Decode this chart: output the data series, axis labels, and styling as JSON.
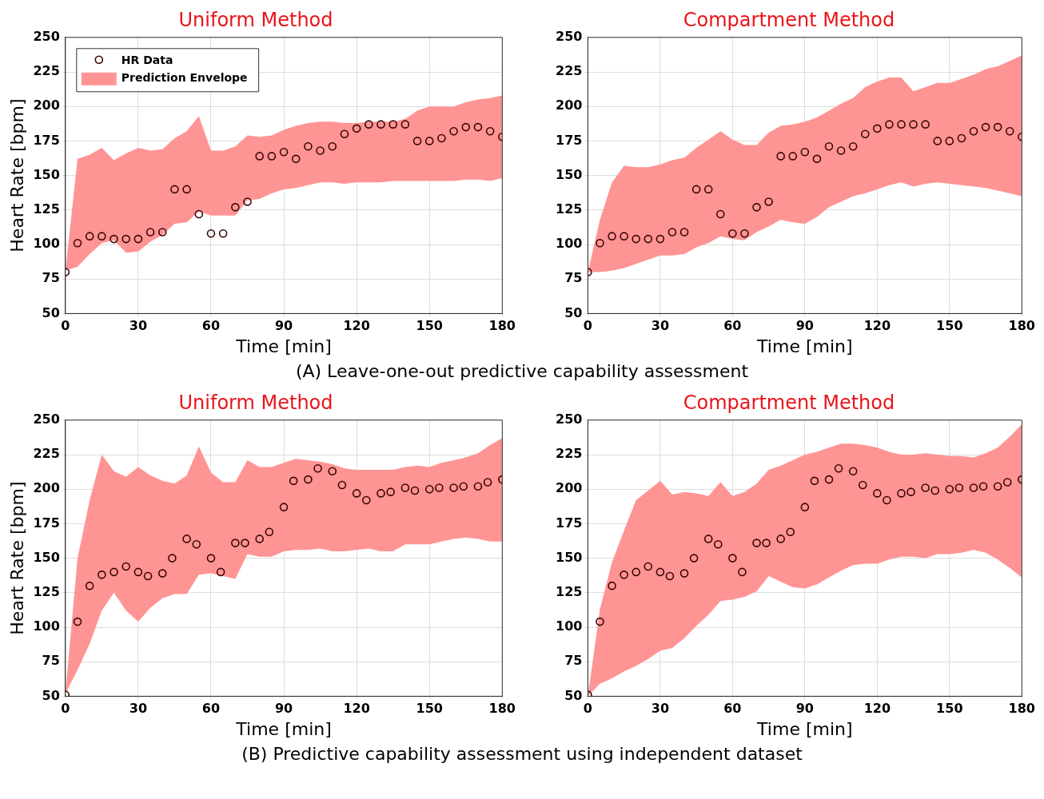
{
  "chart_data": [
    {
      "type": "scatter",
      "title": "Uniform Method",
      "xlabel": "Time [min]",
      "ylabel": "Heart Rate [bpm]",
      "xlim": [
        0,
        180
      ],
      "xticks": [
        0,
        30,
        60,
        90,
        120,
        150,
        180
      ],
      "ylim": [
        50,
        250
      ],
      "yticks": [
        50,
        75,
        100,
        125,
        150,
        175,
        200,
        225,
        250
      ],
      "grid": true,
      "legend": "top left",
      "series": [
        {
          "type": "scatter",
          "name": "HR Data",
          "color": "#3a0505",
          "marker": "circle",
          "x": [
            0,
            5,
            10,
            15,
            20,
            25,
            30,
            35,
            40,
            45,
            50,
            55,
            60,
            65,
            70,
            75,
            80,
            85,
            90,
            95,
            100,
            105,
            110,
            115,
            120,
            125,
            130,
            135,
            140,
            145,
            150,
            155,
            160,
            165,
            170,
            175,
            180
          ],
          "values": [
            80,
            101,
            106,
            106,
            104,
            104,
            104,
            109,
            109,
            140,
            140,
            122,
            108,
            108,
            127,
            131,
            164,
            164,
            167,
            162,
            171,
            168,
            171,
            180,
            184,
            187,
            187,
            187,
            187,
            175,
            175,
            177,
            182,
            185,
            185,
            182,
            178
          ]
        },
        {
          "type": "area",
          "name": "Prediction Envelope",
          "color": "#ff9494",
          "x": [
            0,
            5,
            10,
            15,
            20,
            25,
            30,
            35,
            40,
            45,
            50,
            55,
            60,
            65,
            70,
            75,
            80,
            85,
            90,
            95,
            100,
            105,
            110,
            115,
            120,
            125,
            130,
            135,
            140,
            145,
            150,
            155,
            160,
            165,
            170,
            175,
            180
          ],
          "values": [
            null,
            null,
            null,
            null,
            null,
            null,
            null,
            null,
            null,
            null,
            null,
            null,
            null,
            null,
            null,
            null,
            null,
            null,
            null,
            null,
            null,
            null,
            null,
            null,
            null,
            null,
            null,
            null,
            null,
            null,
            null,
            null,
            null,
            null,
            null,
            null,
            null
          ],
          "lower": [
            81,
            84,
            93,
            101,
            103,
            94,
            95,
            102,
            107,
            115,
            116,
            124,
            121,
            121,
            121,
            132,
            133,
            137,
            140,
            141,
            143,
            145,
            145,
            144,
            145,
            145,
            145,
            146,
            146,
            146,
            146,
            146,
            146,
            147,
            147,
            146,
            148
          ],
          "upper": [
            81,
            162,
            165,
            170,
            161,
            166,
            170,
            168,
            169,
            177,
            182,
            193,
            168,
            168,
            171,
            179,
            178,
            179,
            183,
            186,
            188,
            189,
            189,
            188,
            188,
            189,
            189,
            189,
            191,
            197,
            200,
            200,
            200,
            203,
            205,
            206,
            208
          ]
        }
      ]
    },
    {
      "type": "scatter",
      "title": "Compartment Method",
      "xlabel": "Time [min]",
      "xlim": [
        0,
        180
      ],
      "xticks": [
        0,
        30,
        60,
        90,
        120,
        150,
        180
      ],
      "ylim": [
        50,
        250
      ],
      "yticks": [
        50,
        75,
        100,
        125,
        150,
        175,
        200,
        225,
        250
      ],
      "grid": true,
      "annotations": [
        "(A) Leave-one-out predictive capability assessment"
      ],
      "series": [
        {
          "type": "scatter",
          "color": "#3a0505",
          "marker": "circle",
          "x": [
            0,
            5,
            10,
            15,
            20,
            25,
            30,
            35,
            40,
            45,
            50,
            55,
            60,
            65,
            70,
            75,
            80,
            85,
            90,
            95,
            100,
            105,
            110,
            115,
            120,
            125,
            130,
            135,
            140,
            145,
            150,
            155,
            160,
            165,
            170,
            175,
            180
          ],
          "values": [
            80,
            101,
            106,
            106,
            104,
            104,
            104,
            109,
            109,
            140,
            140,
            122,
            108,
            108,
            127,
            131,
            164,
            164,
            167,
            162,
            171,
            168,
            171,
            180,
            184,
            187,
            187,
            187,
            187,
            175,
            175,
            177,
            182,
            185,
            185,
            182,
            178
          ]
        },
        {
          "type": "area",
          "color": "#ff9494",
          "x": [
            0,
            5,
            10,
            15,
            20,
            25,
            30,
            35,
            40,
            45,
            50,
            55,
            60,
            65,
            70,
            75,
            80,
            85,
            90,
            95,
            100,
            105,
            110,
            115,
            120,
            125,
            130,
            135,
            140,
            145,
            150,
            155,
            160,
            165,
            170,
            175,
            180
          ],
          "values": [
            null,
            null,
            null,
            null,
            null,
            null,
            null,
            null,
            null,
            null,
            null,
            null,
            null,
            null,
            null,
            null,
            null,
            null,
            null,
            null,
            null,
            null,
            null,
            null,
            null,
            null,
            null,
            null,
            null,
            null,
            null,
            null,
            null,
            null,
            null,
            null,
            null
          ],
          "lower": [
            80,
            80,
            81,
            83,
            86,
            89,
            92,
            92,
            93,
            98,
            101,
            106,
            104,
            103,
            109,
            113,
            118,
            116,
            115,
            120,
            127,
            131,
            135,
            137,
            140,
            143,
            145,
            142,
            144,
            145,
            144,
            143,
            142,
            141,
            139,
            137,
            135
          ],
          "upper": [
            80,
            118,
            145,
            157,
            156,
            156,
            158,
            161,
            163,
            170,
            176,
            182,
            176,
            172,
            172,
            181,
            186,
            187,
            189,
            192,
            197,
            202,
            206,
            214,
            218,
            221,
            221,
            211,
            214,
            217,
            217,
            220,
            223,
            227,
            229,
            233,
            237
          ]
        }
      ]
    },
    {
      "type": "scatter",
      "title": "Uniform Method",
      "xlabel": "Time [min]",
      "ylabel": "Heart Rate [bpm]",
      "xlim": [
        0,
        180
      ],
      "xticks": [
        0,
        30,
        60,
        90,
        120,
        150,
        180
      ],
      "ylim": [
        50,
        250
      ],
      "yticks": [
        50,
        75,
        100,
        125,
        150,
        175,
        200,
        225,
        250
      ],
      "grid": true,
      "series": [
        {
          "type": "scatter",
          "color": "#3a0505",
          "marker": "circle",
          "x": [
            0,
            5,
            10,
            15,
            20,
            25,
            30,
            34,
            40,
            44,
            50,
            54,
            60,
            64,
            70,
            74,
            80,
            84,
            90,
            94,
            100,
            104,
            110,
            114,
            120,
            124,
            130,
            134,
            140,
            144,
            150,
            154,
            160,
            164,
            170,
            174,
            180
          ],
          "values": [
            51,
            104,
            130,
            138,
            140,
            144,
            140,
            137,
            139,
            150,
            164,
            160,
            150,
            140,
            161,
            161,
            164,
            169,
            187,
            206,
            207,
            215,
            213,
            203,
            197,
            192,
            197,
            198,
            201,
            199,
            200,
            201,
            201,
            202,
            202,
            205,
            207
          ]
        },
        {
          "type": "area",
          "color": "#ff9494",
          "x": [
            0,
            5,
            10,
            15,
            20,
            25,
            30,
            35,
            40,
            45,
            50,
            55,
            60,
            65,
            70,
            75,
            80,
            85,
            90,
            95,
            100,
            105,
            110,
            115,
            120,
            125,
            130,
            135,
            140,
            145,
            150,
            155,
            160,
            165,
            170,
            175,
            180
          ],
          "values": [
            null,
            null,
            null,
            null,
            null,
            null,
            null,
            null,
            null,
            null,
            null,
            null,
            null,
            null,
            null,
            null,
            null,
            null,
            null,
            null,
            null,
            null,
            null,
            null,
            null,
            null,
            null,
            null,
            null,
            null,
            null,
            null,
            null,
            null,
            null,
            null,
            null
          ],
          "lower": [
            52,
            69,
            88,
            112,
            125,
            112,
            104,
            114,
            121,
            124,
            124,
            138,
            139,
            137,
            135,
            153,
            151,
            151,
            155,
            156,
            156,
            157,
            155,
            155,
            156,
            157,
            155,
            155,
            160,
            160,
            160,
            162,
            164,
            165,
            164,
            162,
            162
          ],
          "upper": [
            52,
            150,
            192,
            225,
            213,
            209,
            216,
            210,
            206,
            204,
            210,
            231,
            212,
            205,
            205,
            221,
            216,
            216,
            219,
            222,
            221,
            220,
            218,
            215,
            214,
            214,
            214,
            214,
            216,
            217,
            216,
            219,
            221,
            223,
            226,
            232,
            237
          ]
        }
      ]
    },
    {
      "type": "scatter",
      "title": "Compartment Method",
      "xlabel": "Time [min]",
      "xlim": [
        0,
        180
      ],
      "xticks": [
        0,
        30,
        60,
        90,
        120,
        150,
        180
      ],
      "ylim": [
        50,
        250
      ],
      "yticks": [
        50,
        75,
        100,
        125,
        150,
        175,
        200,
        225,
        250
      ],
      "grid": true,
      "annotations": [
        "(B) Predictive capability assessment using independent dataset"
      ],
      "series": [
        {
          "type": "scatter",
          "color": "#3a0505",
          "marker": "circle",
          "x": [
            0,
            5,
            10,
            15,
            20,
            25,
            30,
            34,
            40,
            44,
            50,
            54,
            60,
            64,
            70,
            74,
            80,
            84,
            90,
            94,
            100,
            104,
            110,
            114,
            120,
            124,
            130,
            134,
            140,
            144,
            150,
            154,
            160,
            164,
            170,
            174,
            180
          ],
          "values": [
            51,
            104,
            130,
            138,
            140,
            144,
            140,
            137,
            139,
            150,
            164,
            160,
            150,
            140,
            161,
            161,
            164,
            169,
            187,
            206,
            207,
            215,
            213,
            203,
            197,
            192,
            197,
            198,
            201,
            199,
            200,
            201,
            201,
            202,
            202,
            205,
            207
          ]
        },
        {
          "type": "area",
          "color": "#ff9494",
          "x": [
            0,
            5,
            10,
            15,
            20,
            25,
            30,
            35,
            40,
            45,
            50,
            55,
            60,
            65,
            70,
            75,
            80,
            85,
            90,
            95,
            100,
            105,
            110,
            115,
            120,
            125,
            130,
            135,
            140,
            145,
            150,
            155,
            160,
            165,
            170,
            175,
            180
          ],
          "values": [
            null,
            null,
            null,
            null,
            null,
            null,
            null,
            null,
            null,
            null,
            null,
            null,
            null,
            null,
            null,
            null,
            null,
            null,
            null,
            null,
            null,
            null,
            null,
            null,
            null,
            null,
            null,
            null,
            null,
            null,
            null,
            null,
            null,
            null,
            null,
            null,
            null
          ],
          "lower": [
            50,
            59,
            63,
            68,
            72,
            77,
            83,
            85,
            92,
            101,
            109,
            119,
            120,
            122,
            126,
            137,
            133,
            129,
            128,
            131,
            136,
            141,
            145,
            146,
            146,
            149,
            151,
            151,
            150,
            153,
            153,
            154,
            156,
            154,
            149,
            143,
            136
          ],
          "upper": [
            50,
            113,
            147,
            170,
            192,
            199,
            206,
            196,
            198,
            197,
            195,
            205,
            195,
            198,
            204,
            214,
            217,
            221,
            225,
            227,
            230,
            233,
            233,
            232,
            230,
            227,
            225,
            225,
            226,
            225,
            224,
            224,
            223,
            226,
            230,
            238,
            247
          ]
        }
      ]
    }
  ]
}
